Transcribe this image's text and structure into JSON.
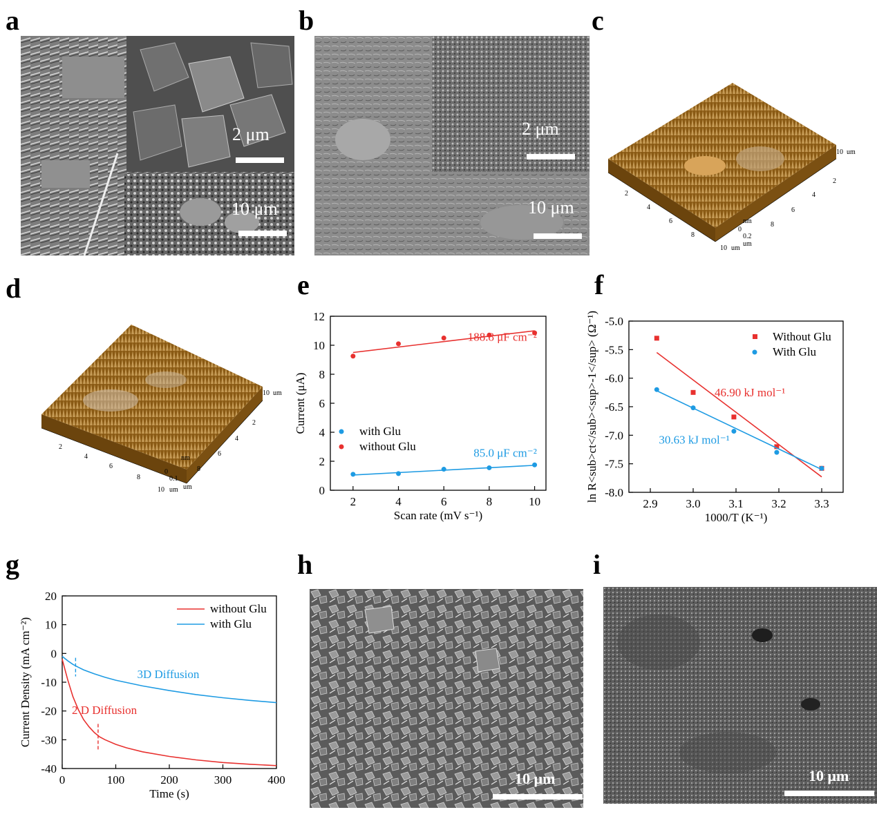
{
  "panels": {
    "a": {
      "letter": "a",
      "scale_inset": "2 μm",
      "scale_main": "10 μm"
    },
    "b": {
      "letter": "b",
      "scale_inset": "2 μm",
      "scale_main": "10 μm"
    },
    "c": {
      "letter": "c",
      "afm_unit": "um",
      "afm_z_unit": "nm",
      "afm_x_ticks": [
        "2",
        "4",
        "6",
        "8",
        "10"
      ],
      "afm_y_ticks": [
        "2",
        "4",
        "6",
        "8",
        "10"
      ],
      "afm_z_labels": [
        "0.2",
        "0"
      ]
    },
    "d": {
      "letter": "d",
      "afm_unit": "um",
      "afm_z_unit": "nm",
      "afm_x_ticks": [
        "2",
        "4",
        "6",
        "8",
        "10"
      ],
      "afm_y_ticks": [
        "2",
        "4",
        "6",
        "8",
        "10"
      ],
      "afm_z_labels": [
        "0.1",
        "0"
      ]
    },
    "e": {
      "letter": "e"
    },
    "f": {
      "letter": "f"
    },
    "g": {
      "letter": "g"
    },
    "h": {
      "letter": "h",
      "scale_main": "10 μm"
    },
    "i": {
      "letter": "i",
      "scale_main": "10 μm"
    }
  },
  "colors": {
    "red": "#e8312f",
    "blue": "#1e9be3",
    "afm_brown": "#8a5a14",
    "afm_light": "#d9b070"
  },
  "chart_data": [
    {
      "panel": "e",
      "type": "scatter",
      "xlabel": "Scan rate (mV s⁻¹)",
      "ylabel": "Current (μA)",
      "xlim": [
        1,
        10.5
      ],
      "ylim": [
        0,
        12
      ],
      "xticks": [
        2,
        4,
        6,
        8,
        10
      ],
      "yticks": [
        0,
        2,
        4,
        6,
        8,
        10,
        12
      ],
      "legend_position": "lower-left",
      "series": [
        {
          "name": "with Glu",
          "color": "#1e9be3",
          "x": [
            2,
            4,
            6,
            8,
            10
          ],
          "y": [
            1.1,
            1.15,
            1.45,
            1.55,
            1.75
          ],
          "fit": [
            [
              2,
              1.05
            ],
            [
              10,
              1.72
            ]
          ],
          "annotation": "85.0 μF cm⁻²"
        },
        {
          "name": "without Glu",
          "color": "#e8312f",
          "x": [
            2,
            4,
            6,
            8,
            10
          ],
          "y": [
            9.25,
            10.1,
            10.5,
            10.7,
            10.85
          ],
          "fit": [
            [
              2,
              9.5
            ],
            [
              10,
              11.0
            ]
          ],
          "annotation": "188.8 μF cm⁻²"
        }
      ]
    },
    {
      "panel": "f",
      "type": "scatter",
      "xlabel": "1000/T (K⁻¹)",
      "ylabel": "ln R<sub>ct</sub><sup>-1</sup> (Ω⁻¹)",
      "xlim": [
        2.85,
        3.35
      ],
      "ylim": [
        -8.0,
        -5.0
      ],
      "xticks": [
        2.9,
        3.0,
        3.1,
        3.2,
        3.3
      ],
      "yticks": [
        -8.0,
        -7.5,
        -7.0,
        -6.5,
        -6.0,
        -5.5,
        -5.0
      ],
      "legend_position": "top-right",
      "series": [
        {
          "name": "Without Glu",
          "marker": "square",
          "color": "#e8312f",
          "x": [
            2.915,
            3.0,
            3.095,
            3.195,
            3.3
          ],
          "y": [
            -5.3,
            -6.25,
            -6.68,
            -7.2,
            -7.58
          ],
          "fit": [
            [
              2.915,
              -5.55
            ],
            [
              3.3,
              -7.73
            ]
          ],
          "annotation": "46.90 kJ mol⁻¹"
        },
        {
          "name": "With Glu",
          "marker": "circle",
          "color": "#1e9be3",
          "x": [
            2.915,
            3.0,
            3.095,
            3.195,
            3.3
          ],
          "y": [
            -6.2,
            -6.52,
            -6.93,
            -7.3,
            -7.58
          ],
          "fit": [
            [
              2.915,
              -6.22
            ],
            [
              3.3,
              -7.6
            ]
          ],
          "annotation": "30.63 kJ mol⁻¹"
        }
      ]
    },
    {
      "panel": "g",
      "type": "line",
      "xlabel": "Time (s)",
      "ylabel": "Current Density (mA cm⁻²)",
      "xlim": [
        0,
        400
      ],
      "ylim": [
        -40,
        20
      ],
      "xticks": [
        0,
        100,
        200,
        300,
        400
      ],
      "yticks": [
        -40,
        -30,
        -20,
        -10,
        0,
        10,
        20
      ],
      "legend_position": "top-right",
      "series": [
        {
          "name": "without Glu",
          "color": "#e8312f",
          "x": [
            0,
            10,
            20,
            30,
            40,
            50,
            60,
            70,
            80,
            100,
            120,
            150,
            200,
            250,
            300,
            350,
            400
          ],
          "y": [
            -2,
            -9,
            -15,
            -19.5,
            -23,
            -25.5,
            -27.5,
            -29,
            -30,
            -31.6,
            -32.8,
            -34.2,
            -35.8,
            -37,
            -37.9,
            -38.5,
            -39
          ]
        },
        {
          "name": "with Glu",
          "color": "#1e9be3",
          "x": [
            0,
            10,
            20,
            30,
            40,
            60,
            80,
            100,
            150,
            200,
            250,
            300,
            350,
            400
          ],
          "y": [
            -1,
            -2.5,
            -3.8,
            -4.8,
            -5.7,
            -7.1,
            -8.3,
            -9.3,
            -11.3,
            -12.9,
            -14.3,
            -15.4,
            -16.3,
            -17.1
          ]
        }
      ],
      "annotations": [
        {
          "text": "3D Diffusion",
          "color": "#1e9be3"
        },
        {
          "text": "2 D Diffusion",
          "color": "#e8312f"
        }
      ],
      "markers": [
        {
          "x": 25,
          "color": "#1e9be3"
        },
        {
          "x": 67,
          "color": "#e8312f"
        }
      ]
    }
  ]
}
